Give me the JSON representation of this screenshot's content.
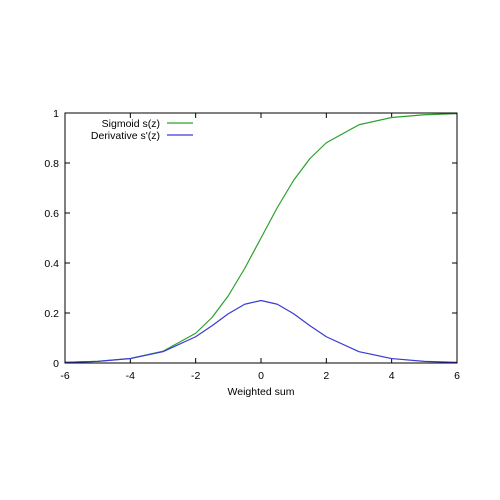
{
  "chart_data": {
    "type": "line",
    "title": "",
    "xlabel": "Weighted sum",
    "ylabel": "",
    "xlim": [
      -6,
      6
    ],
    "ylim": [
      0,
      1
    ],
    "grid": false,
    "legend_position": "top-left",
    "x_ticks": [
      {
        "value": -6,
        "label": "-6"
      },
      {
        "value": -4,
        "label": "-4"
      },
      {
        "value": -2,
        "label": "-2"
      },
      {
        "value": 0,
        "label": "0"
      },
      {
        "value": 2,
        "label": "2"
      },
      {
        "value": 4,
        "label": "4"
      },
      {
        "value": 6,
        "label": "6"
      }
    ],
    "y_ticks": [
      {
        "value": 0,
        "label": "0"
      },
      {
        "value": 0.2,
        "label": "0.2"
      },
      {
        "value": 0.4,
        "label": "0.4"
      },
      {
        "value": 0.6,
        "label": "0.6"
      },
      {
        "value": 0.8,
        "label": "0.8"
      },
      {
        "value": 1,
        "label": "1"
      }
    ],
    "x": [
      -6,
      -5,
      -4,
      -3,
      -2,
      -1.5,
      -1,
      -0.5,
      0,
      0.5,
      1,
      1.5,
      2,
      3,
      4,
      5,
      6
    ],
    "series": [
      {
        "name": "Sigmoid s(z)",
        "color": "#2ca02c",
        "values": [
          0.0025,
          0.0067,
          0.018,
          0.047,
          0.119,
          0.182,
          0.269,
          0.378,
          0.5,
          0.622,
          0.731,
          0.818,
          0.881,
          0.953,
          0.982,
          0.993,
          0.9975
        ]
      },
      {
        "name": "Derivative s'(z)",
        "color": "#3a3ad6",
        "values": [
          0.0025,
          0.0066,
          0.0177,
          0.0452,
          0.105,
          0.149,
          0.197,
          0.235,
          0.25,
          0.235,
          0.197,
          0.149,
          0.105,
          0.0452,
          0.0177,
          0.0066,
          0.0025
        ]
      }
    ]
  }
}
